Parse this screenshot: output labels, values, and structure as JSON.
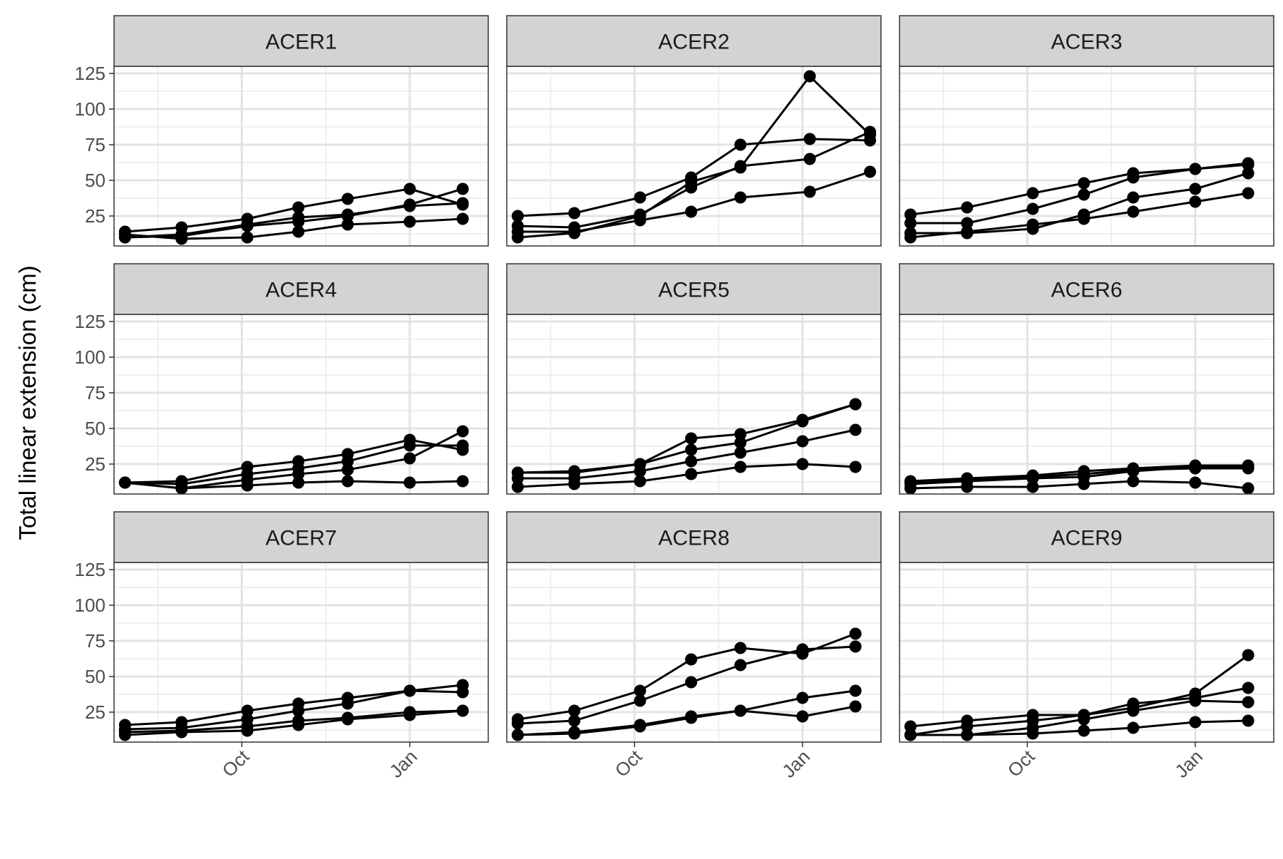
{
  "chart_data": {
    "type": "line",
    "ylabel": "Total linear extension (cm)",
    "xlabel": "",
    "x_tick_labels": [
      "Oct",
      "Jan"
    ],
    "y_ticks": [
      25,
      50,
      75,
      100,
      125
    ],
    "ylim": [
      4,
      130
    ],
    "xlim": [
      "2022-07-23",
      "2023-02-13"
    ],
    "x_ticks": [
      "2022-10-01",
      "2023-01-01"
    ],
    "x_minor_ticks": [
      "2022-08-16",
      "2022-11-16",
      "2023-02-16"
    ],
    "grid": true,
    "legend": "none",
    "line_color": "#000000",
    "strip_fill": "#d3d3d3",
    "panels": [
      {
        "name": "ACER1",
        "dates": [
          "2022-07-29",
          "2022-08-29",
          "2022-10-04",
          "2022-11-01",
          "2022-11-28",
          "2023-01-01",
          "2023-01-30"
        ],
        "series": [
          {
            "values": [
              10,
              12,
              19,
              24,
              26,
              32,
              34
            ]
          },
          {
            "values": [
              14,
              17,
              23,
              31,
              37,
              44,
              33
            ]
          },
          {
            "values": [
              12,
              9,
              10,
              14,
              19,
              21,
              23
            ]
          },
          {
            "values": [
              10,
              11,
              18,
              21,
              25,
              33,
              44
            ]
          }
        ]
      },
      {
        "name": "ACER2",
        "dates": [
          "2022-07-29",
          "2022-08-29",
          "2022-10-04",
          "2022-11-01",
          "2022-11-28",
          "2023-01-05",
          "2023-02-07"
        ],
        "series": [
          {
            "values": [
              25,
              27,
              38,
              52,
              75,
              79,
              78
            ]
          },
          {
            "values": [
              18,
              17,
              26,
              45,
              60,
              65,
              84
            ]
          },
          {
            "values": [
              14,
              14,
              22,
              28,
              38,
              42,
              56
            ]
          },
          {
            "values": [
              10,
              13,
              25,
              49,
              59,
              123,
              82
            ]
          }
        ]
      },
      {
        "name": "ACER3",
        "dates": [
          "2022-07-29",
          "2022-08-29",
          "2022-10-04",
          "2022-11-01",
          "2022-11-28",
          "2023-01-01",
          "2023-01-30"
        ],
        "series": [
          {
            "values": [
              26,
              31,
              41,
              48,
              55,
              58,
              62
            ]
          },
          {
            "values": [
              20,
              20,
              30,
              40,
              52,
              58,
              61
            ]
          },
          {
            "values": [
              13,
              13,
              16,
              26,
              38,
              44,
              55
            ]
          },
          {
            "values": [
              10,
              14,
              19,
              23,
              28,
              35,
              41
            ]
          }
        ]
      },
      {
        "name": "ACER4",
        "dates": [
          "2022-07-29",
          "2022-08-29",
          "2022-10-04",
          "2022-11-01",
          "2022-11-28",
          "2023-01-01",
          "2023-01-30"
        ],
        "series": [
          {
            "values": [
              12,
              13,
              23,
              27,
              32,
              42,
              35
            ]
          },
          {
            "values": [
              12,
              11,
              18,
              22,
              27,
              38,
              38
            ]
          },
          {
            "values": [
              12,
              8,
              14,
              18,
              21,
              29,
              48
            ]
          },
          {
            "values": [
              12,
              8,
              10,
              12,
              13,
              12,
              13
            ]
          }
        ]
      },
      {
        "name": "ACER5",
        "dates": [
          "2022-07-29",
          "2022-08-29",
          "2022-10-04",
          "2022-11-01",
          "2022-11-28",
          "2023-01-01",
          "2023-01-30"
        ],
        "series": [
          {
            "values": [
              19,
              20,
              25,
              43,
              46,
              56,
              67
            ]
          },
          {
            "values": [
              19,
              19,
              25,
              35,
              40,
              55,
              67
            ]
          },
          {
            "values": [
              15,
              15,
              20,
              27,
              33,
              41,
              49
            ]
          },
          {
            "values": [
              9,
              11,
              13,
              18,
              23,
              25,
              23
            ]
          }
        ]
      },
      {
        "name": "ACER6",
        "dates": [
          "2022-07-29",
          "2022-08-29",
          "2022-10-04",
          "2022-11-01",
          "2022-11-28",
          "2023-01-01",
          "2023-01-30"
        ],
        "series": [
          {
            "values": [
              13,
              15,
              17,
              20,
              22,
              24,
              24
            ]
          },
          {
            "values": [
              12,
              14,
              16,
              18,
              21,
              22,
              22
            ]
          },
          {
            "values": [
              11,
              13,
              15,
              16,
              20,
              23,
              23
            ]
          },
          {
            "values": [
              8,
              9,
              9,
              11,
              13,
              12,
              8
            ]
          }
        ]
      },
      {
        "name": "ACER7",
        "dates": [
          "2022-07-29",
          "2022-08-29",
          "2022-10-04",
          "2022-11-01",
          "2022-11-28",
          "2023-01-01",
          "2023-01-30"
        ],
        "series": [
          {
            "values": [
              16,
              18,
              26,
              31,
              35,
              40,
              44
            ]
          },
          {
            "values": [
              13,
              14,
              20,
              26,
              31,
              40,
              39
            ]
          },
          {
            "values": [
              11,
              12,
              15,
              19,
              21,
              25,
              26
            ]
          },
          {
            "values": [
              9,
              11,
              12,
              16,
              20,
              23,
              26
            ]
          }
        ]
      },
      {
        "name": "ACER8",
        "dates": [
          "2022-07-29",
          "2022-08-29",
          "2022-10-04",
          "2022-11-01",
          "2022-11-28",
          "2023-01-01",
          "2023-01-30"
        ],
        "series": [
          {
            "values": [
              20,
              26,
              40,
              62,
              70,
              66,
              80
            ]
          },
          {
            "values": [
              17,
              19,
              33,
              46,
              58,
              69,
              71
            ]
          },
          {
            "values": [
              9,
              11,
              16,
              22,
              26,
              35,
              40
            ]
          },
          {
            "values": [
              9,
              10,
              15,
              21,
              26,
              22,
              29
            ]
          }
        ]
      },
      {
        "name": "ACER9",
        "dates": [
          "2022-07-29",
          "2022-08-29",
          "2022-10-04",
          "2022-11-01",
          "2022-11-28",
          "2023-01-01",
          "2023-01-30"
        ],
        "series": [
          {
            "values": [
              15,
              19,
              23,
              23,
              28,
              38,
              65
            ]
          },
          {
            "values": [
              9,
              15,
              19,
              23,
              31,
              35,
              42
            ]
          },
          {
            "values": [
              9,
              9,
              14,
              20,
              26,
              33,
              32
            ]
          },
          {
            "values": [
              9,
              9,
              10,
              12,
              14,
              18,
              19
            ]
          }
        ]
      }
    ]
  }
}
